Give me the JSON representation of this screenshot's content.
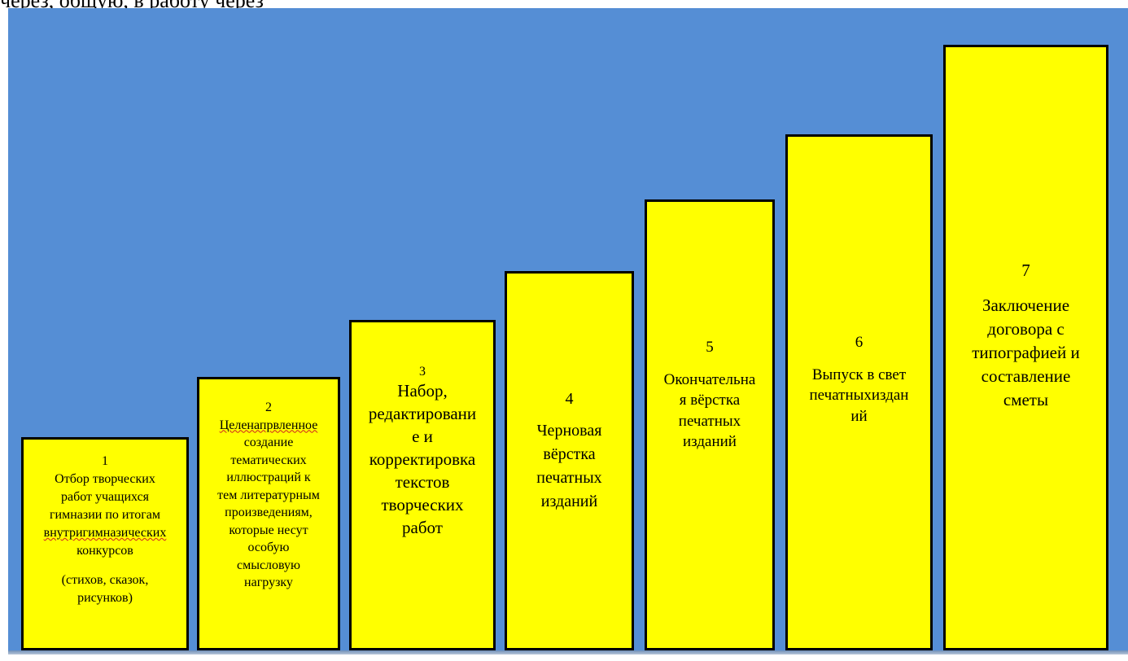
{
  "header_fragment": "через, общую, в работу через",
  "steps": [
    {
      "number": "1",
      "text": "Отбор творческих\nработ учащихся\nгимназии по итогам",
      "underlined": "внутригимназических",
      "text_after": "конкурсов",
      "sub": "(стихов, сказок,\nрисунков)"
    },
    {
      "number": "2",
      "underlined": "Целенапрвленное",
      "text": "создание\nтематических\nиллюстраций к\nтем литературным\nпроизведениям,\nкоторые несут\nособую\nсмысловую\nнагрузку"
    },
    {
      "number": "3",
      "text": "Набор,\nредактировани\nе и\nкорректировка\nтекстов\nтворческих\nработ"
    },
    {
      "number": "4",
      "text": "Черновая\nвёрстка\nпечатных\nизданий"
    },
    {
      "number": "5",
      "text": "Окончательна\nя вёрстка\nпечатных\nизданий"
    },
    {
      "number": "6",
      "text": "Выпуск в свет\nпечатныхиздан\nий"
    },
    {
      "number": "7",
      "text": "Заключение\nдоговора с\nтипографией и\nсоставление\nсметы"
    }
  ],
  "colors": {
    "background_panel": "#558ed5",
    "step_fill": "#ffff00",
    "step_border": "#000000"
  }
}
